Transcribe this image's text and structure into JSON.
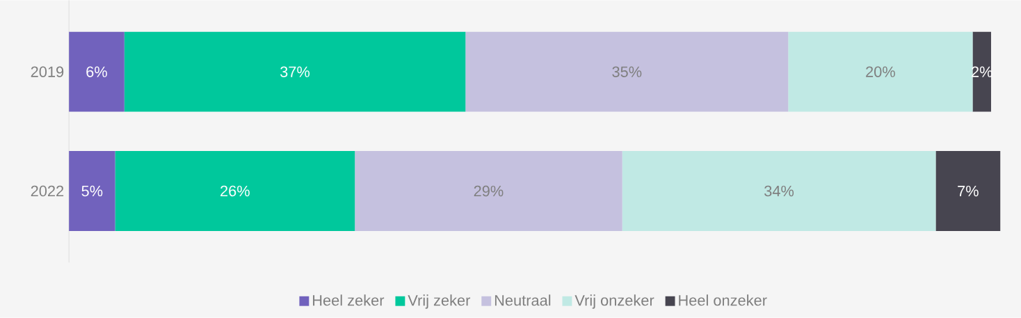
{
  "chart_data": {
    "type": "bar",
    "orientation": "horizontal",
    "stacked": true,
    "legend": "bottom",
    "tick_labels": "y",
    "xlim": [
      0,
      101
    ],
    "categories": [
      "2019",
      "2022"
    ],
    "series": [
      {
        "name": "Heel zeker",
        "color": "#7162bd",
        "values": [
          6,
          5
        ],
        "value_labels": [
          "6%",
          "5%"
        ]
      },
      {
        "name": "Vrij zeker",
        "color": "#00c89c",
        "values": [
          37,
          26
        ],
        "value_labels": [
          "37%",
          "26%"
        ]
      },
      {
        "name": "Neutraal",
        "color": "#c5c1df",
        "values": [
          35,
          29
        ],
        "value_labels": [
          "35%",
          "29%"
        ]
      },
      {
        "name": "Vrij onzeker",
        "color": "#c0e9e4",
        "values": [
          20,
          34
        ],
        "value_labels": [
          "20%",
          "34%"
        ]
      },
      {
        "name": "Heel onzeker",
        "color": "#474550",
        "values": [
          2,
          7
        ],
        "value_labels": [
          "2%",
          "7%"
        ]
      }
    ]
  }
}
